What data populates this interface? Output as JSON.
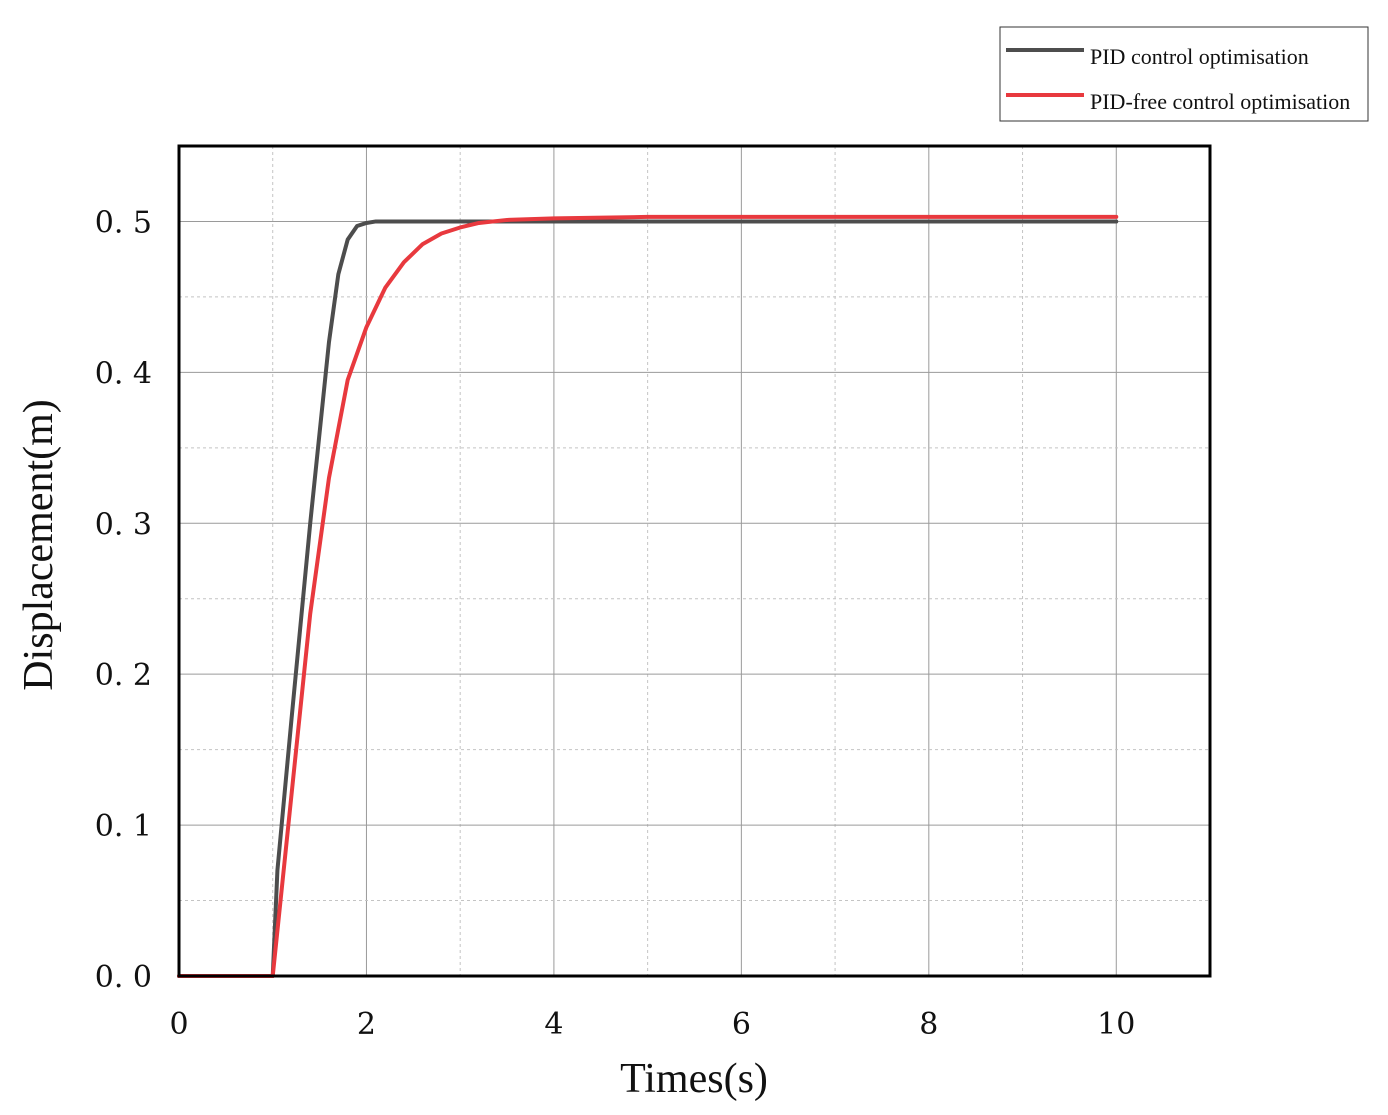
{
  "chart_data": {
    "type": "line",
    "xlabel": "Times(s)",
    "ylabel": "Displacement(m)",
    "xlim": [
      0,
      11
    ],
    "ylim": [
      0,
      0.55
    ],
    "xticks": [
      0,
      2,
      4,
      6,
      8,
      10
    ],
    "xtick_labels": [
      "0",
      "2",
      "4",
      "6",
      "8",
      "10"
    ],
    "yticks": [
      0.0,
      0.1,
      0.2,
      0.3,
      0.4,
      0.5
    ],
    "ytick_labels": [
      "0. 0",
      "0. 1",
      "0. 2",
      "0. 3",
      "0. 4",
      "0. 5"
    ],
    "grid": true,
    "legend_position": "top-right, outside plot",
    "series": [
      {
        "name": "PID control optimisation",
        "color": "#4d4d4d",
        "x": [
          0,
          1.0,
          1.05,
          1.2,
          1.4,
          1.6,
          1.7,
          1.8,
          1.9,
          2.0,
          2.1,
          2.2,
          2.4,
          2.6,
          3.0,
          4.0,
          6.0,
          8.0,
          10.0
        ],
        "y": [
          0,
          0,
          0.07,
          0.17,
          0.3,
          0.42,
          0.465,
          0.488,
          0.497,
          0.499,
          0.5,
          0.5,
          0.5,
          0.5,
          0.5,
          0.5,
          0.5,
          0.5,
          0.5
        ]
      },
      {
        "name": "PID-free control optimisation",
        "color": "#e8393e",
        "x": [
          0,
          1.0,
          1.1,
          1.2,
          1.4,
          1.6,
          1.8,
          2.0,
          2.2,
          2.4,
          2.6,
          2.8,
          3.0,
          3.2,
          3.5,
          4.0,
          5.0,
          6.0,
          8.0,
          10.0
        ],
        "y": [
          0,
          0,
          0.06,
          0.12,
          0.24,
          0.33,
          0.395,
          0.43,
          0.456,
          0.473,
          0.485,
          0.492,
          0.496,
          0.499,
          0.501,
          0.502,
          0.503,
          0.503,
          0.503,
          0.503
        ]
      }
    ]
  }
}
